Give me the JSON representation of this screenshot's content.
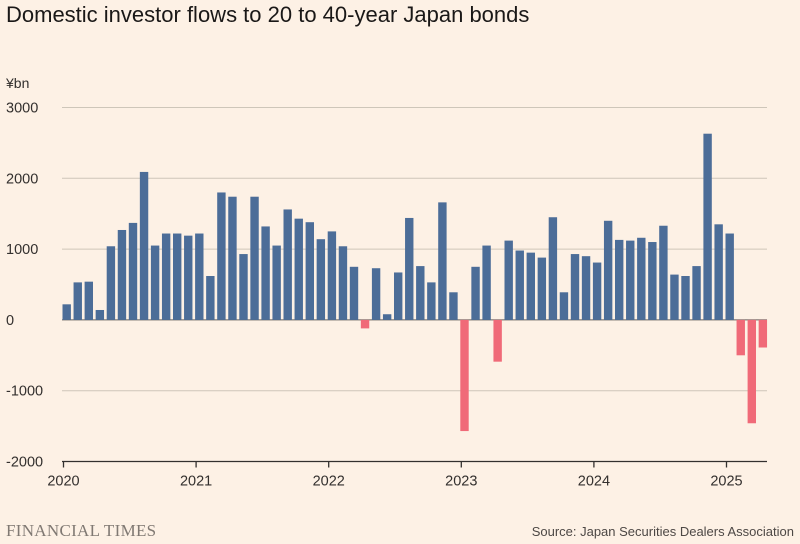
{
  "title": "Domestic investor flows to 20 to 40-year Japan bonds",
  "footer": {
    "brand": "FINANCIAL TIMES",
    "source": "Source: Japan Securities Dealers Association"
  },
  "colors": {
    "positive": "#4c6d98",
    "negative": "#f06a78",
    "background": "#fdf1e5"
  },
  "chart_data": {
    "type": "bar",
    "title": "Domestic investor flows to 20 to 40-year Japan bonds",
    "unit_label": "¥bn",
    "xlabel": "",
    "ylabel": "",
    "ylim": [
      -2000,
      3000
    ],
    "y_ticks": [
      3000,
      2000,
      1000,
      0,
      -1000,
      -2000
    ],
    "y_tick_labels": [
      "3000",
      "2000",
      "1000",
      "0",
      "-1000",
      "-2000"
    ],
    "x_tick_labels": [
      "2020",
      "2021",
      "2022",
      "2023",
      "2024",
      "2025"
    ],
    "grid": "horizontal",
    "start": "2020-01",
    "categories": [
      "2020-01",
      "2020-02",
      "2020-03",
      "2020-04",
      "2020-05",
      "2020-06",
      "2020-07",
      "2020-08",
      "2020-09",
      "2020-10",
      "2020-11",
      "2020-12",
      "2021-01",
      "2021-02",
      "2021-03",
      "2021-04",
      "2021-05",
      "2021-06",
      "2021-07",
      "2021-08",
      "2021-09",
      "2021-10",
      "2021-11",
      "2021-12",
      "2022-01",
      "2022-02",
      "2022-03",
      "2022-04",
      "2022-05",
      "2022-06",
      "2022-07",
      "2022-08",
      "2022-09",
      "2022-10",
      "2022-11",
      "2022-12",
      "2023-01",
      "2023-02",
      "2023-03",
      "2023-04",
      "2023-05",
      "2023-06",
      "2023-07",
      "2023-08",
      "2023-09",
      "2023-10",
      "2023-11",
      "2023-12",
      "2024-01",
      "2024-02",
      "2024-03",
      "2024-04",
      "2024-05",
      "2024-06",
      "2024-07",
      "2024-08",
      "2024-09",
      "2024-10",
      "2024-11",
      "2024-12",
      "2025-01",
      "2025-02",
      "2025-03",
      "2025-04"
    ],
    "values": [
      220,
      530,
      540,
      140,
      1040,
      1270,
      1370,
      2090,
      1050,
      1220,
      1220,
      1190,
      1220,
      620,
      1800,
      1740,
      930,
      1740,
      1320,
      1050,
      1560,
      1430,
      1380,
      1140,
      1250,
      1040,
      750,
      -120,
      730,
      80,
      670,
      1440,
      760,
      530,
      1660,
      390,
      -1570,
      750,
      1050,
      -590,
      1120,
      980,
      950,
      880,
      1450,
      390,
      930,
      900,
      810,
      1400,
      1130,
      1120,
      1160,
      1100,
      1330,
      640,
      620,
      760,
      2630,
      1350,
      1220,
      -500,
      -1460,
      -390
    ]
  }
}
